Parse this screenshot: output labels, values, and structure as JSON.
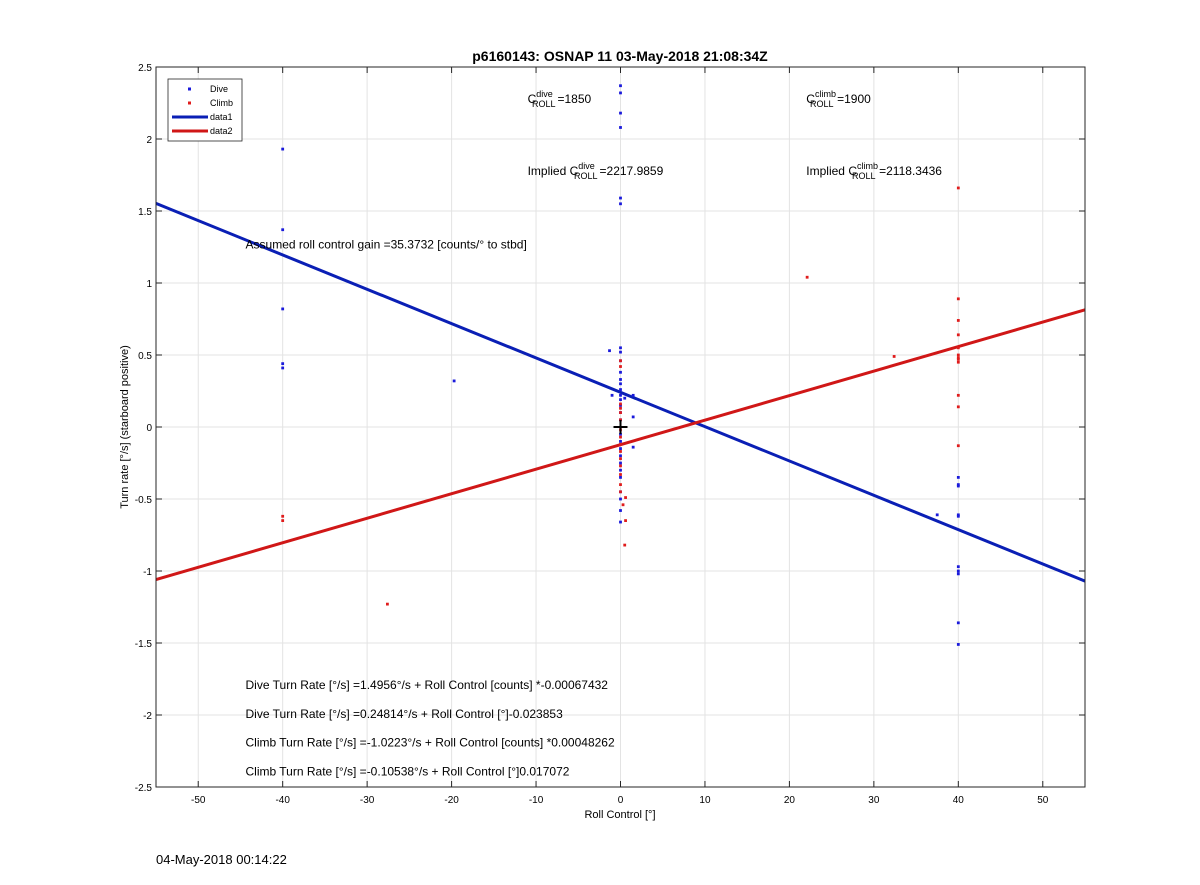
{
  "footer": {
    "timestamp": "04-May-2018 00:14:22"
  },
  "chart_data": {
    "type": "scatter",
    "title": "p6160143: OSNAP 11 03-May-2018 21:08:34Z",
    "xlabel": "Roll Control [°]",
    "ylabel": "Turn rate [°/s] (starboard positive)",
    "xlim": [
      -55,
      55
    ],
    "ylim": [
      -2.5,
      2.5
    ],
    "grid": true,
    "legend_position": "top-left",
    "x_ticks": [
      "-50",
      "-40",
      "-30",
      "-20",
      "-10",
      "0",
      "10",
      "20",
      "30",
      "40",
      "50"
    ],
    "y_ticks": [
      "-2.5",
      "-2",
      "-1.5",
      "-1",
      "-0.5",
      "0",
      "0.5",
      "1",
      "1.5",
      "2",
      "2.5"
    ],
    "colors": {
      "dive": "#1a1adb",
      "climb": "#e01c1c",
      "line_dive": "#0a1fb5",
      "line_climb": "#d01717"
    },
    "legend": [
      {
        "label": "Dive",
        "kind": "marker",
        "color": "#1a1adb"
      },
      {
        "label": "Climb",
        "kind": "marker",
        "color": "#e01c1c"
      },
      {
        "label": "data1",
        "kind": "line",
        "color": "#0a1fb5"
      },
      {
        "label": "data2",
        "kind": "line",
        "color": "#d01717"
      }
    ],
    "series": [
      {
        "name": "Dive",
        "kind": "scatter",
        "color": "#1a1adb",
        "points": [
          [
            -40,
            1.93
          ],
          [
            -40,
            1.37
          ],
          [
            -40,
            0.82
          ],
          [
            -40,
            0.44
          ],
          [
            -40,
            0.41
          ],
          [
            -19.7,
            0.32
          ],
          [
            0,
            2.37
          ],
          [
            0,
            2.32
          ],
          [
            0,
            2.18
          ],
          [
            0,
            2.08
          ],
          [
            0,
            1.59
          ],
          [
            0,
            1.55
          ],
          [
            -1.3,
            0.53
          ],
          [
            0,
            0.55
          ],
          [
            0,
            0.52
          ],
          [
            0,
            0.46
          ],
          [
            0,
            0.38
          ],
          [
            0,
            0.33
          ],
          [
            0,
            0.3
          ],
          [
            0,
            0.26
          ],
          [
            0,
            0.22
          ],
          [
            0,
            0.19
          ],
          [
            0,
            0.15
          ],
          [
            0,
            0.1
          ],
          [
            0,
            0.05
          ],
          [
            0,
            -0.05
          ],
          [
            0,
            -0.1
          ],
          [
            0,
            -0.15
          ],
          [
            0,
            -0.2
          ],
          [
            0,
            -0.25
          ],
          [
            0,
            -0.3
          ],
          [
            0,
            -0.35
          ],
          [
            0,
            -0.45
          ],
          [
            0,
            -0.5
          ],
          [
            0,
            -0.58
          ],
          [
            0,
            -0.66
          ],
          [
            1.5,
            0.22
          ],
          [
            1.5,
            0.07
          ],
          [
            1.5,
            -0.14
          ],
          [
            -1,
            0.22
          ],
          [
            0.5,
            0.2
          ],
          [
            37.5,
            -0.61
          ],
          [
            40,
            -0.35
          ],
          [
            40,
            -0.4
          ],
          [
            40,
            -0.41
          ],
          [
            40,
            -0.61
          ],
          [
            40,
            -0.62
          ],
          [
            40,
            -0.97
          ],
          [
            40,
            -1.0
          ],
          [
            40,
            -1.02
          ],
          [
            40,
            -1.36
          ],
          [
            40,
            -1.51
          ]
        ]
      },
      {
        "name": "Climb",
        "kind": "scatter",
        "color": "#e01c1c",
        "points": [
          [
            -40,
            -0.62
          ],
          [
            -40,
            -0.65
          ],
          [
            -27.6,
            -1.23
          ],
          [
            0,
            0.46
          ],
          [
            0,
            0.42
          ],
          [
            0,
            0.16
          ],
          [
            0,
            0.13
          ],
          [
            0,
            0.1
          ],
          [
            0,
            0.05
          ],
          [
            0,
            -0.02
          ],
          [
            0,
            -0.07
          ],
          [
            0,
            -0.12
          ],
          [
            0,
            -0.17
          ],
          [
            0,
            -0.22
          ],
          [
            0,
            -0.27
          ],
          [
            0,
            -0.33
          ],
          [
            0,
            -0.4
          ],
          [
            0,
            -0.45
          ],
          [
            0.3,
            -0.54
          ],
          [
            0.6,
            -0.49
          ],
          [
            0.6,
            -0.65
          ],
          [
            0.5,
            -0.82
          ],
          [
            22.1,
            1.04
          ],
          [
            32.4,
            0.49
          ],
          [
            40,
            1.66
          ],
          [
            40,
            0.89
          ],
          [
            40,
            0.74
          ],
          [
            40,
            0.64
          ],
          [
            40,
            0.55
          ],
          [
            40,
            0.5
          ],
          [
            40,
            0.48
          ],
          [
            40,
            0.47
          ],
          [
            40,
            0.45
          ],
          [
            40,
            0.22
          ],
          [
            40,
            0.14
          ],
          [
            40,
            -0.13
          ]
        ]
      },
      {
        "name": "data1",
        "kind": "line",
        "color": "#0a1fb5",
        "x": [
          -55,
          55
        ],
        "y": [
          1.5525,
          -1.0704
        ]
      },
      {
        "name": "data2",
        "kind": "line",
        "color": "#d01717",
        "x": [
          -55,
          55
        ],
        "y": [
          -1.0591,
          0.8138
        ]
      }
    ],
    "origin_marker": [
      0,
      0
    ],
    "annotations": [
      {
        "id": "c-dive",
        "base": "C",
        "sup": "dive",
        "sub": "ROLL",
        "value": "=1850",
        "x": -11,
        "y": 2.25
      },
      {
        "id": "c-climb",
        "base": "C",
        "sup": "climb",
        "sub": "ROLL",
        "value": "=1900",
        "x": 22,
        "y": 2.25
      },
      {
        "id": "implied-dive",
        "prefix": "Implied ",
        "base": "C",
        "sup": "dive",
        "sub": "ROLL",
        "value": "=2217.9859",
        "x": -11,
        "y": 1.75
      },
      {
        "id": "implied-climb",
        "prefix": "Implied ",
        "base": "C",
        "sup": "climb",
        "sub": "ROLL",
        "value": "=2118.3436",
        "x": 22,
        "y": 1.75
      },
      {
        "id": "gain",
        "text": "Assumed roll control gain =35.3732 [counts/° to stbd]",
        "x": -44.4,
        "y": 1.24
      },
      {
        "id": "eq1",
        "text": "Dive Turn Rate [°/s] =1.4956°/s + Roll Control [counts] *-0.00067432",
        "x": -44.4,
        "y": -1.82
      },
      {
        "id": "eq2",
        "text": "Dive Turn Rate [°/s] =0.24814°/s + Roll Control [°]-0.023853",
        "x": -44.4,
        "y": -2.02
      },
      {
        "id": "eq3",
        "text": "Climb Turn Rate [°/s] =-1.0223°/s + Roll Control [counts] *0.00048262",
        "x": -44.4,
        "y": -2.22
      },
      {
        "id": "eq4",
        "text": "Climb Turn Rate [°/s] =-0.10538°/s + Roll Control [°]0.017072",
        "x": -44.4,
        "y": -2.42
      }
    ]
  }
}
